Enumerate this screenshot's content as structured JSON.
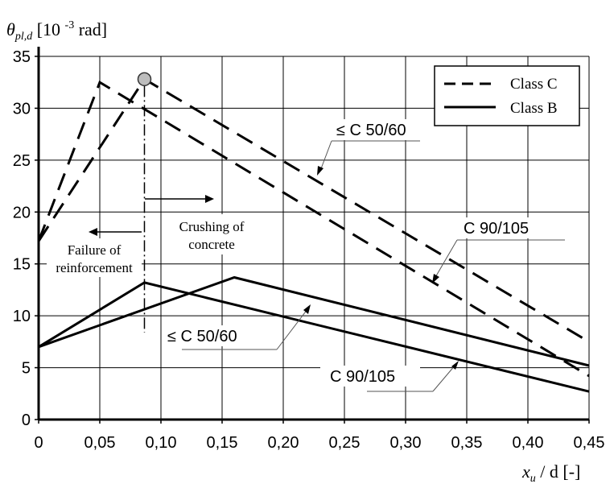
{
  "chart_data": {
    "type": "line",
    "y_axis_title": {
      "symbol": "θ",
      "subscript": "pl,d",
      "unit_prefix": "[10",
      "exponent": "-3",
      "unit_suffix": "rad]"
    },
    "x_axis_title": {
      "symbol": "x",
      "subscript": "u",
      "rest": "/ d [-]"
    },
    "xlim": [
      0,
      0.45
    ],
    "ylim": [
      0,
      35
    ],
    "x_ticks": [
      {
        "value": 0,
        "label": "0"
      },
      {
        "value": 0.05,
        "label": "0,05"
      },
      {
        "value": 0.1,
        "label": "0,10"
      },
      {
        "value": 0.15,
        "label": "0,15"
      },
      {
        "value": 0.2,
        "label": "0,20"
      },
      {
        "value": 0.25,
        "label": "0,25"
      },
      {
        "value": 0.3,
        "label": "0,30"
      },
      {
        "value": 0.35,
        "label": "0,35"
      },
      {
        "value": 0.4,
        "label": "0,40"
      },
      {
        "value": 0.45,
        "label": "0,45"
      }
    ],
    "y_ticks": [
      {
        "value": 0,
        "label": "0"
      },
      {
        "value": 5,
        "label": "5"
      },
      {
        "value": 10,
        "label": "10"
      },
      {
        "value": 15,
        "label": "15"
      },
      {
        "value": 20,
        "label": "20"
      },
      {
        "value": 25,
        "label": "25"
      },
      {
        "value": 30,
        "label": "30"
      },
      {
        "value": 35,
        "label": "35"
      }
    ],
    "grid": true,
    "legend_position": "top-right",
    "legend": [
      {
        "label": "Class C",
        "style": "dashed"
      },
      {
        "label": "Class B",
        "style": "solid"
      }
    ],
    "series": [
      {
        "group": "Class C",
        "style": "dashed",
        "points": [
          [
            0.0,
            17.2
          ],
          [
            0.0865,
            32.8
          ],
          [
            0.45,
            7.5
          ]
        ]
      },
      {
        "group": "Class C",
        "style": "dashed",
        "points": [
          [
            0.0,
            17.2
          ],
          [
            0.05,
            32.5
          ],
          [
            0.45,
            4.2
          ]
        ]
      },
      {
        "group": "Class B",
        "style": "solid",
        "points": [
          [
            0.0,
            7.0
          ],
          [
            0.0865,
            13.2
          ],
          [
            0.45,
            2.7
          ]
        ]
      },
      {
        "group": "Class B",
        "style": "solid",
        "points": [
          [
            0.0,
            7.0
          ],
          [
            0.16,
            13.7
          ],
          [
            0.45,
            5.2
          ]
        ]
      }
    ],
    "marker": {
      "x": 0.0865,
      "y": 32.8
    },
    "boundary_x": 0.0865,
    "annotations": {
      "left_region": [
        "Failure of",
        "reinforcement"
      ],
      "right_region": [
        "Crushing of",
        "concrete"
      ],
      "label_c_upper": "≤ C 50/60",
      "label_c_lower": "C 90/105",
      "label_b_upper": "≤ C 50/60",
      "label_b_lower": "C 90/105"
    }
  }
}
